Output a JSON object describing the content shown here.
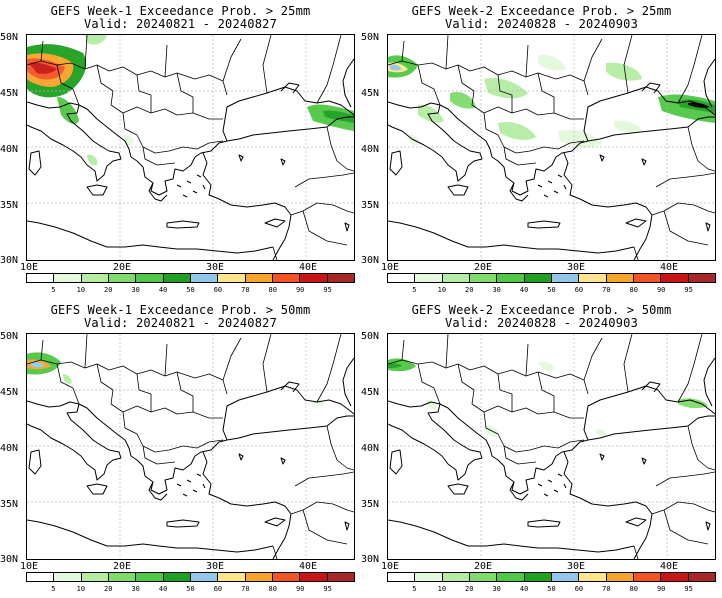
{
  "panels": [
    {
      "title": "GEFS Week-1 Exceedance Prob. > 25mm",
      "valid": "Valid: 20240821 - 20240827",
      "lat_labels": [
        "50N",
        "45N",
        "40N",
        "35N",
        "30N"
      ],
      "lon_labels": [
        "10E",
        "20E",
        "30E",
        "40E"
      ],
      "colorbar_ticks": [
        "5",
        "10",
        "20",
        "30",
        "40",
        "50",
        "60",
        "70",
        "80",
        "90",
        "95"
      ]
    },
    {
      "title": "GEFS Week-2 Exceedance Prob. > 25mm",
      "valid": "Valid: 20240828 - 20240903",
      "lat_labels": [
        "50N",
        "45N",
        "40N",
        "35N",
        "30N"
      ],
      "lon_labels": [
        "10E",
        "20E",
        "30E",
        "40E"
      ],
      "colorbar_ticks": [
        "5",
        "10",
        "20",
        "30",
        "40",
        "50",
        "60",
        "70",
        "80",
        "90",
        "95"
      ]
    },
    {
      "title": "GEFS Week-1 Exceedance Prob. > 50mm",
      "valid": "Valid: 20240821 - 20240827",
      "lat_labels": [
        "50N",
        "45N",
        "40N",
        "35N",
        "30N"
      ],
      "lon_labels": [
        "10E",
        "20E",
        "30E",
        "40E"
      ],
      "colorbar_ticks": [
        "5",
        "10",
        "20",
        "30",
        "40",
        "50",
        "60",
        "70",
        "80",
        "90",
        "95"
      ]
    },
    {
      "title": "GEFS Week-2 Exceedance Prob. > 50mm",
      "valid": "Valid: 20240828 - 20240903",
      "lat_labels": [
        "50N",
        "45N",
        "40N",
        "35N",
        "30N"
      ],
      "lon_labels": [
        "10E",
        "20E",
        "30E",
        "40E"
      ],
      "colorbar_ticks": [
        "5",
        "10",
        "20",
        "30",
        "40",
        "50",
        "60",
        "70",
        "80",
        "90",
        "95"
      ]
    }
  ],
  "colorbar_colors": [
    "#ffffff",
    "#e3f8dc",
    "#b4eda2",
    "#7fdc6b",
    "#4fc845",
    "#1ea020",
    "#8fc8ea",
    "#fde68a",
    "#f8a428",
    "#f45422",
    "#c81414",
    "#a82828"
  ],
  "colors": {
    "land": "#ffffff",
    "coastline": "#000000",
    "gridline": "#b0b0b0"
  }
}
